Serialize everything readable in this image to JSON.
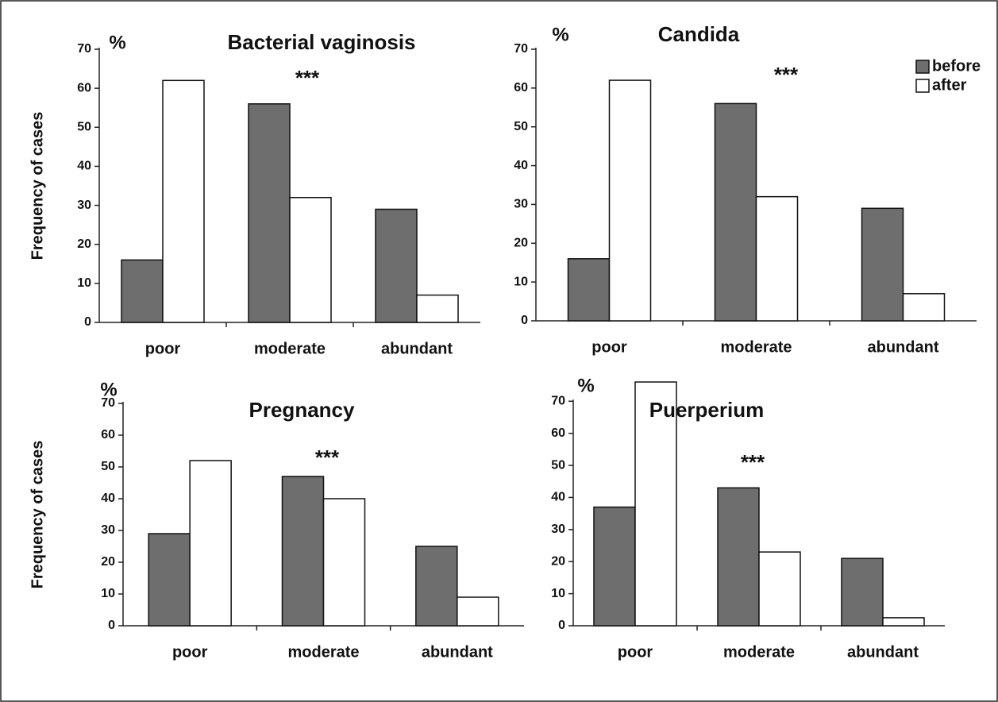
{
  "chart_data": [
    {
      "type": "bar",
      "title": "Bacterial vaginosis",
      "unit_label": "%",
      "y_label": "Frequency of cases",
      "annotation": "***",
      "categories": [
        "poor",
        "moderate",
        "abundant"
      ],
      "series": [
        {
          "name": "before",
          "color": "#6e6e6e",
          "values": [
            16,
            56,
            29
          ]
        },
        {
          "name": "after",
          "color": "#ffffff",
          "values": [
            62,
            32,
            7
          ]
        }
      ],
      "ylim": [
        0,
        70
      ],
      "yticks": [
        0,
        10,
        20,
        30,
        40,
        50,
        60,
        70
      ],
      "legend": false
    },
    {
      "type": "bar",
      "title": "Candida",
      "unit_label": "%",
      "annotation": "***",
      "categories": [
        "poor",
        "moderate",
        "abundant"
      ],
      "series": [
        {
          "name": "before",
          "color": "#6e6e6e",
          "values": [
            16,
            56,
            29
          ]
        },
        {
          "name": "after",
          "color": "#ffffff",
          "values": [
            62,
            32,
            7
          ]
        }
      ],
      "ylim": [
        0,
        70
      ],
      "yticks": [
        0,
        10,
        20,
        30,
        40,
        50,
        60,
        70
      ],
      "legend": "upper right"
    },
    {
      "type": "bar",
      "title": "Pregnancy",
      "unit_label": "%",
      "y_label": "Frequency of cases",
      "annotation": "***",
      "categories": [
        "poor",
        "moderate",
        "abundant"
      ],
      "series": [
        {
          "name": "before",
          "color": "#6e6e6e",
          "values": [
            29,
            47,
            25
          ]
        },
        {
          "name": "after",
          "color": "#ffffff",
          "values": [
            52,
            40,
            9
          ]
        }
      ],
      "ylim": [
        0,
        70
      ],
      "yticks": [
        0,
        10,
        20,
        30,
        40,
        50,
        60,
        70
      ],
      "legend": false
    },
    {
      "type": "bar",
      "title": "Puerperium",
      "unit_label": "%",
      "annotation": "***",
      "categories": [
        "poor",
        "moderate",
        "abundant"
      ],
      "series": [
        {
          "name": "before",
          "color": "#6e6e6e",
          "values": [
            37,
            43,
            21
          ]
        },
        {
          "name": "after",
          "color": "#ffffff",
          "values": [
            76,
            23,
            2.5
          ]
        }
      ],
      "ylim": [
        0,
        77
      ],
      "yticks": [
        0,
        10,
        20,
        30,
        40,
        50,
        60,
        70
      ],
      "legend": false
    }
  ]
}
